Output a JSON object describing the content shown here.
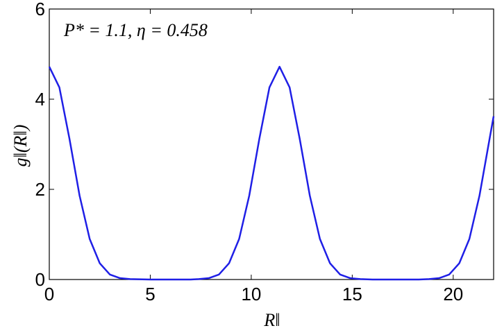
{
  "chart_data": {
    "type": "line",
    "annotation": "P* = 1.1, η = 0.458",
    "x_label": "R‖",
    "y_label": "g‖(R‖)",
    "x": [
      0,
      0.5,
      1,
      1.5,
      2,
      2.5,
      3,
      3.5,
      4,
      5,
      6,
      7,
      7.4,
      7.9,
      8.4,
      8.9,
      9.4,
      9.9,
      10.4,
      10.9,
      11.4,
      11.9,
      12.4,
      12.9,
      13.4,
      13.9,
      14.4,
      14.9,
      15.4,
      16,
      17,
      18,
      18.3,
      18.8,
      19.3,
      19.8,
      20.3,
      20.8,
      21.3,
      21.8,
      22
    ],
    "series": [
      {
        "color": "#1f1fe6",
        "values": [
          4.72,
          4.26,
          3.12,
          1.86,
          0.9,
          0.36,
          0.11,
          0.03,
          0.01,
          0,
          0,
          0,
          0.01,
          0.03,
          0.11,
          0.36,
          0.9,
          1.86,
          3.12,
          4.26,
          4.72,
          4.26,
          3.12,
          1.86,
          0.9,
          0.36,
          0.11,
          0.03,
          0.01,
          0,
          0,
          0,
          0,
          0.01,
          0.03,
          0.11,
          0.36,
          0.9,
          1.86,
          3.12,
          3.62
        ]
      }
    ],
    "xlim": [
      0,
      22
    ],
    "xticks": [
      0,
      5,
      10,
      15,
      20
    ],
    "ylim": [
      0,
      6
    ],
    "yticks": [
      0,
      2,
      4,
      6
    ]
  }
}
